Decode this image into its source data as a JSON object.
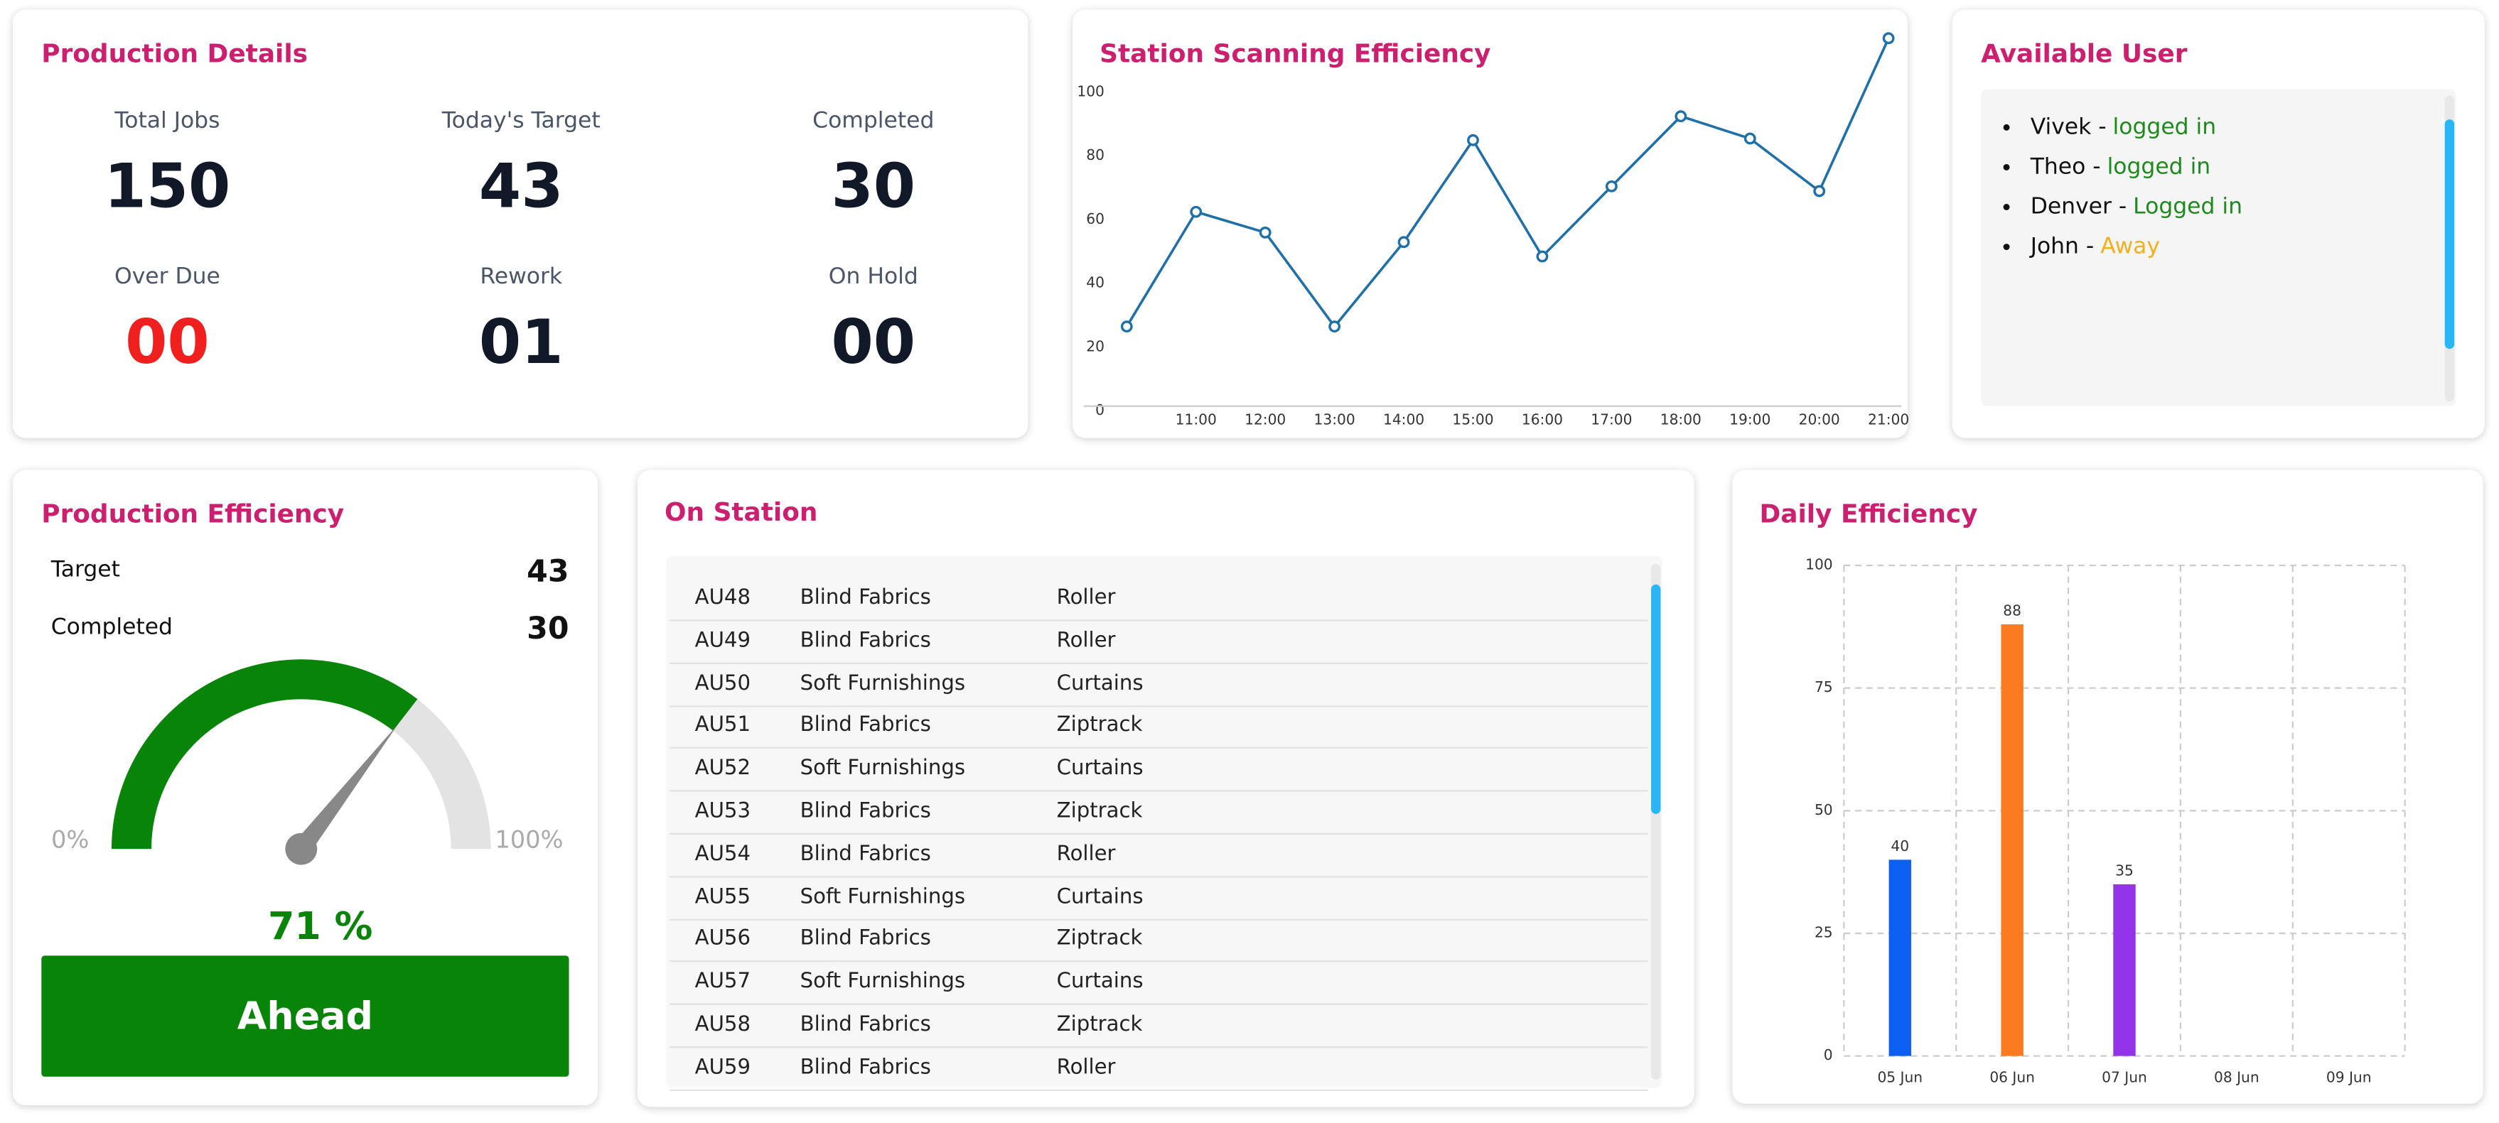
{
  "production_details": {
    "title": "Production Details",
    "items": [
      {
        "label": "Total Jobs",
        "value": "150"
      },
      {
        "label": "Today's Target",
        "value": "43"
      },
      {
        "label": "Completed",
        "value": "30"
      },
      {
        "label": "Over Due",
        "value": "00"
      },
      {
        "label": "Rework",
        "value": "01"
      },
      {
        "label": "On Hold",
        "value": "00"
      }
    ]
  },
  "available_user": {
    "title": "Available User",
    "users": [
      {
        "name": "Vivek -",
        "status": "logged in",
        "color": "#1e8a1e"
      },
      {
        "name": "Theo -",
        "status": "logged in",
        "color": "#1e8a1e"
      },
      {
        "name": "Denver -",
        "status": "Logged in",
        "color": "#1e8a1e"
      },
      {
        "name": "John -",
        "status": "Away",
        "color": "#f2b01e"
      }
    ]
  },
  "production_efficiency": {
    "title": "Production Efficiency",
    "rows": [
      {
        "label": "Target",
        "value": "43"
      },
      {
        "label": "Completed",
        "value": "30"
      }
    ],
    "gauge": {
      "min": {
        "value": 0,
        "label": "0%"
      },
      "max": {
        "value": 100,
        "label": "100%"
      },
      "value": 71,
      "value_label": "71 %"
    },
    "status": "Ahead"
  },
  "on_station": {
    "title": "On Station",
    "rows": [
      [
        "AU48",
        "Blind Fabrics",
        "Roller"
      ],
      [
        "AU49",
        "Blind Fabrics",
        "Roller"
      ],
      [
        "AU50",
        "Soft Furnishings",
        "Curtains"
      ],
      [
        "AU51",
        "Blind Fabrics",
        "Ziptrack"
      ],
      [
        "AU52",
        "Soft Furnishings",
        "Curtains"
      ],
      [
        "AU53",
        "Blind Fabrics",
        "Ziptrack"
      ],
      [
        "AU54",
        "Blind Fabrics",
        "Roller"
      ],
      [
        "AU55",
        "Soft Furnishings",
        "Curtains"
      ],
      [
        "AU56",
        "Blind Fabrics",
        "Ziptrack"
      ],
      [
        "AU57",
        "Soft Furnishings",
        "Curtains"
      ],
      [
        "AU58",
        "Blind Fabrics",
        "Ziptrack"
      ],
      [
        "AU59",
        "Blind Fabrics",
        "Roller"
      ]
    ]
  },
  "chart_data": [
    {
      "type": "line",
      "title": "Station Scanning Efficiency",
      "categories": [
        null,
        "11:00",
        "12:00",
        "13:00",
        "14:00",
        "15:00",
        "16:00",
        "17:00",
        "18:00",
        "19:00",
        "20:00",
        "21:00"
      ],
      "values": [
        26.5,
        62.5,
        56,
        26.5,
        53,
        85,
        48.5,
        70.5,
        92.5,
        85.5,
        69,
        117
      ],
      "color": "#1f6fa8",
      "ylim": [
        0,
        120
      ],
      "yticks": [
        0,
        20,
        40,
        60,
        80,
        100
      ]
    },
    {
      "type": "bar",
      "title": "Daily Efficiency",
      "categories": [
        "05 Jun",
        "06 Jun",
        "07 Jun",
        "08 Jun",
        "09 Jun"
      ],
      "values": [
        40,
        88,
        35,
        null,
        null
      ],
      "colors": [
        "#0d5ff2",
        "#fb7a20",
        "#9333ea",
        "#888888",
        "#888888"
      ],
      "ylim": [
        0,
        100
      ],
      "yticks": [
        0,
        25,
        50,
        75,
        100
      ],
      "grid": true
    }
  ]
}
